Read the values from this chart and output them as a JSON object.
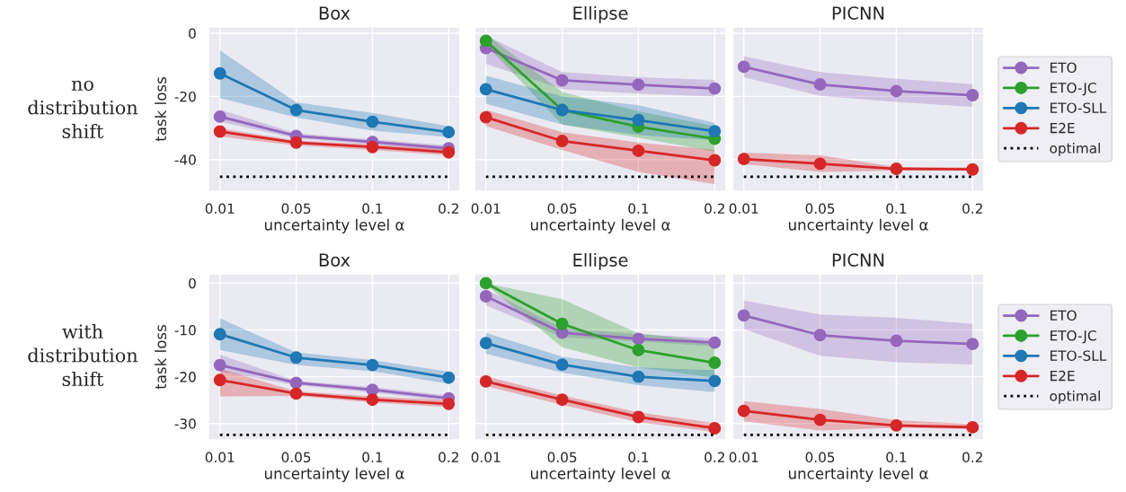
{
  "chart_data": [
    {
      "type": "line",
      "title": "Box",
      "xlabel": "uncertainty level α",
      "ylabel": "task loss",
      "categories": [
        "0.01",
        "0.05",
        "0.1",
        "0.2"
      ],
      "ylim": [
        -50,
        2
      ],
      "yticks": [
        -40,
        -20,
        0
      ],
      "grid": true,
      "marker": "circle",
      "annotations": [
        "no\ndistribution\nshift"
      ],
      "series": [
        {
          "color": "#9467bd",
          "values": [
            -26.4,
            -32.5,
            -34.4,
            -36.4
          ],
          "lower": [
            -28.0,
            -33.3,
            -35.2,
            -37.4
          ],
          "upper": [
            -24.2,
            -31.7,
            -33.6,
            -35.5
          ]
        },
        {
          "color": "#1f77b4",
          "values": [
            -12.7,
            -24.3,
            -28.0,
            -31.3
          ],
          "lower": [
            -20.5,
            -26.6,
            -30.8,
            -32.9
          ],
          "upper": [
            -5.4,
            -21.9,
            -25.2,
            -29.4
          ]
        },
        {
          "color": "#d62728",
          "values": [
            -31.1,
            -34.6,
            -36.0,
            -37.7
          ],
          "lower": [
            -32.7,
            -35.5,
            -36.9,
            -38.6
          ],
          "upper": [
            -30.1,
            -33.9,
            -35.2,
            -36.7
          ]
        },
        {
          "color": "#000000",
          "marker": "none",
          "line_style": "dotted",
          "values": [
            -45.4,
            -45.4,
            -45.4,
            -45.4
          ]
        }
      ]
    },
    {
      "type": "line",
      "title": "Ellipse",
      "xlabel": "uncertainty level α",
      "categories": [
        "0.01",
        "0.05",
        "0.1",
        "0.2"
      ],
      "ylim": [
        -50,
        2
      ],
      "yticks": [
        -40,
        -20,
        0
      ],
      "tick_labels": "x",
      "grid": true,
      "marker": "circle",
      "series": [
        {
          "color": "#9467bd",
          "values": [
            -4.7,
            -14.9,
            -16.3,
            -17.5
          ],
          "lower": [
            -9.7,
            -17.7,
            -19.1,
            -20.0
          ],
          "upper": [
            -0.8,
            -12.3,
            -13.9,
            -14.8
          ]
        },
        {
          "color": "#2ca02c",
          "values": [
            -2.4,
            -24.3,
            -29.6,
            -33.4
          ],
          "lower": [
            -3.6,
            -28.9,
            -33.1,
            -37.4
          ],
          "upper": [
            -0.3,
            -18.6,
            -24.7,
            -29.4
          ]
        },
        {
          "color": "#1f77b4",
          "values": [
            -17.7,
            -24.3,
            -27.5,
            -31.0
          ],
          "lower": [
            -22.3,
            -28.9,
            -32.2,
            -33.9
          ],
          "upper": [
            -13.4,
            -20.0,
            -22.8,
            -28.3
          ]
        },
        {
          "color": "#d62728",
          "values": [
            -26.6,
            -34.1,
            -37.2,
            -40.2
          ],
          "lower": [
            -29.4,
            -36.9,
            -43.9,
            -47.7
          ],
          "upper": [
            -24.2,
            -31.3,
            -34.6,
            -36.9
          ]
        },
        {
          "color": "#000000",
          "marker": "none",
          "line_style": "dotted",
          "values": [
            -45.4,
            -45.4,
            -45.4,
            -45.4
          ]
        }
      ]
    },
    {
      "type": "line",
      "title": "PICNN",
      "xlabel": "uncertainty level α",
      "categories": [
        "0.01",
        "0.05",
        "0.1",
        "0.2"
      ],
      "ylim": [
        -50,
        2
      ],
      "yticks": [
        -40,
        -20,
        0
      ],
      "tick_labels": "x",
      "grid": true,
      "legend": "right",
      "marker": "circle",
      "series": [
        {
          "name": "ETO",
          "color": "#9467bd",
          "values": [
            -10.6,
            -16.2,
            -18.3,
            -19.6
          ],
          "lower": [
            -13.9,
            -19.8,
            -21.7,
            -23.3
          ],
          "upper": [
            -7.3,
            -12.3,
            -14.4,
            -16.1
          ]
        },
        {
          "name": "ETO-JC",
          "color": "#2ca02c",
          "values": [
            null,
            null,
            null,
            null
          ]
        },
        {
          "name": "ETO-SLL",
          "color": "#1f77b4",
          "values": [
            null,
            null,
            null,
            null
          ]
        },
        {
          "name": "E2E",
          "color": "#d62728",
          "values": [
            -39.8,
            -41.3,
            -42.9,
            -43.1
          ],
          "lower": [
            -41.4,
            -43.9,
            -43.5,
            -43.5
          ],
          "upper": [
            -37.8,
            -38.6,
            -42.3,
            -42.5
          ]
        },
        {
          "name": "optimal",
          "color": "#000000",
          "marker": "none",
          "line_style": "dotted",
          "values": [
            -45.4,
            -45.4,
            -45.4,
            -45.4
          ]
        }
      ]
    },
    {
      "type": "line",
      "title": "Box",
      "xlabel": "uncertainty level α",
      "ylabel": "task loss",
      "categories": [
        "0.01",
        "0.05",
        "0.1",
        "0.2"
      ],
      "ylim": [
        -33.5,
        2
      ],
      "yticks": [
        -30,
        -20,
        -10,
        0
      ],
      "grid": true,
      "marker": "circle",
      "annotations": [
        "with\ndistribution\nshift"
      ],
      "series": [
        {
          "color": "#9467bd",
          "values": [
            -17.5,
            -21.3,
            -22.8,
            -24.6
          ],
          "lower": [
            -18.9,
            -21.8,
            -23.4,
            -25.2
          ],
          "upper": [
            -15.3,
            -20.9,
            -22.2,
            -24.0
          ]
        },
        {
          "color": "#1f77b4",
          "values": [
            -10.9,
            -15.9,
            -17.5,
            -20.2
          ],
          "lower": [
            -14.3,
            -17.5,
            -18.8,
            -21.5
          ],
          "upper": [
            -7.5,
            -14.8,
            -16.4,
            -18.9
          ]
        },
        {
          "color": "#d62728",
          "values": [
            -20.7,
            -23.6,
            -24.9,
            -25.8
          ],
          "lower": [
            -24.2,
            -24.1,
            -25.5,
            -26.5
          ],
          "upper": [
            -18.3,
            -23.1,
            -24.2,
            -25.0
          ]
        },
        {
          "color": "#000000",
          "marker": "none",
          "line_style": "dotted",
          "values": [
            -32.4,
            -32.4,
            -32.4,
            -32.4
          ]
        }
      ]
    },
    {
      "type": "line",
      "title": "Ellipse",
      "xlabel": "uncertainty level α",
      "categories": [
        "0.01",
        "0.05",
        "0.1",
        "0.2"
      ],
      "ylim": [
        -33.5,
        2
      ],
      "yticks": [
        -30,
        -20,
        -10,
        0
      ],
      "tick_labels": "x",
      "grid": true,
      "marker": "circle",
      "series": [
        {
          "color": "#9467bd",
          "values": [
            -2.8,
            -10.6,
            -11.9,
            -12.7
          ],
          "lower": [
            -4.7,
            -11.6,
            -12.5,
            -13.5
          ],
          "upper": [
            -1.3,
            -9.6,
            -10.9,
            -11.8
          ]
        },
        {
          "color": "#2ca02c",
          "values": [
            0.0,
            -8.7,
            -14.3,
            -17.0
          ],
          "lower": [
            -0.3,
            -13.7,
            -18.0,
            -20.2
          ],
          "upper": [
            0.0,
            -3.4,
            -10.7,
            -12.5
          ]
        },
        {
          "color": "#1f77b4",
          "values": [
            -12.8,
            -17.4,
            -20.0,
            -20.9
          ],
          "lower": [
            -15.1,
            -19.1,
            -21.8,
            -23.3
          ],
          "upper": [
            -10.6,
            -15.7,
            -18.0,
            -18.6
          ]
        },
        {
          "color": "#d62728",
          "values": [
            -21.0,
            -24.9,
            -28.6,
            -31.0
          ],
          "lower": [
            -22.0,
            -26.0,
            -29.7,
            -31.8
          ],
          "upper": [
            -19.9,
            -24.0,
            -27.6,
            -29.9
          ]
        },
        {
          "color": "#000000",
          "marker": "none",
          "line_style": "dotted",
          "values": [
            -32.4,
            -32.4,
            -32.4,
            -32.4
          ]
        }
      ]
    },
    {
      "type": "line",
      "title": "PICNN",
      "xlabel": "uncertainty level α",
      "categories": [
        "0.01",
        "0.05",
        "0.1",
        "0.2"
      ],
      "ylim": [
        -33.5,
        2
      ],
      "yticks": [
        -30,
        -20,
        -10,
        0
      ],
      "tick_labels": "x",
      "grid": true,
      "legend": "right",
      "marker": "circle",
      "series": [
        {
          "name": "ETO",
          "color": "#9467bd",
          "values": [
            -6.9,
            -11.1,
            -12.3,
            -13.0
          ],
          "lower": [
            -9.8,
            -15.5,
            -16.9,
            -17.4
          ],
          "upper": [
            -3.7,
            -6.7,
            -7.4,
            -8.7
          ]
        },
        {
          "name": "ETO-JC",
          "color": "#2ca02c",
          "values": [
            null,
            null,
            null,
            null
          ]
        },
        {
          "name": "ETO-SLL",
          "color": "#1f77b4",
          "values": [
            null,
            null,
            null,
            null
          ]
        },
        {
          "name": "E2E",
          "color": "#d62728",
          "values": [
            -27.3,
            -29.2,
            -30.4,
            -30.8
          ],
          "lower": [
            -29.5,
            -31.5,
            -30.9,
            -31.2
          ],
          "upper": [
            -25.2,
            -26.9,
            -29.3,
            -30.1
          ]
        },
        {
          "name": "optimal",
          "color": "#000000",
          "marker": "none",
          "line_style": "dotted",
          "values": [
            -32.4,
            -32.4,
            -32.4,
            -32.4
          ]
        }
      ]
    }
  ]
}
